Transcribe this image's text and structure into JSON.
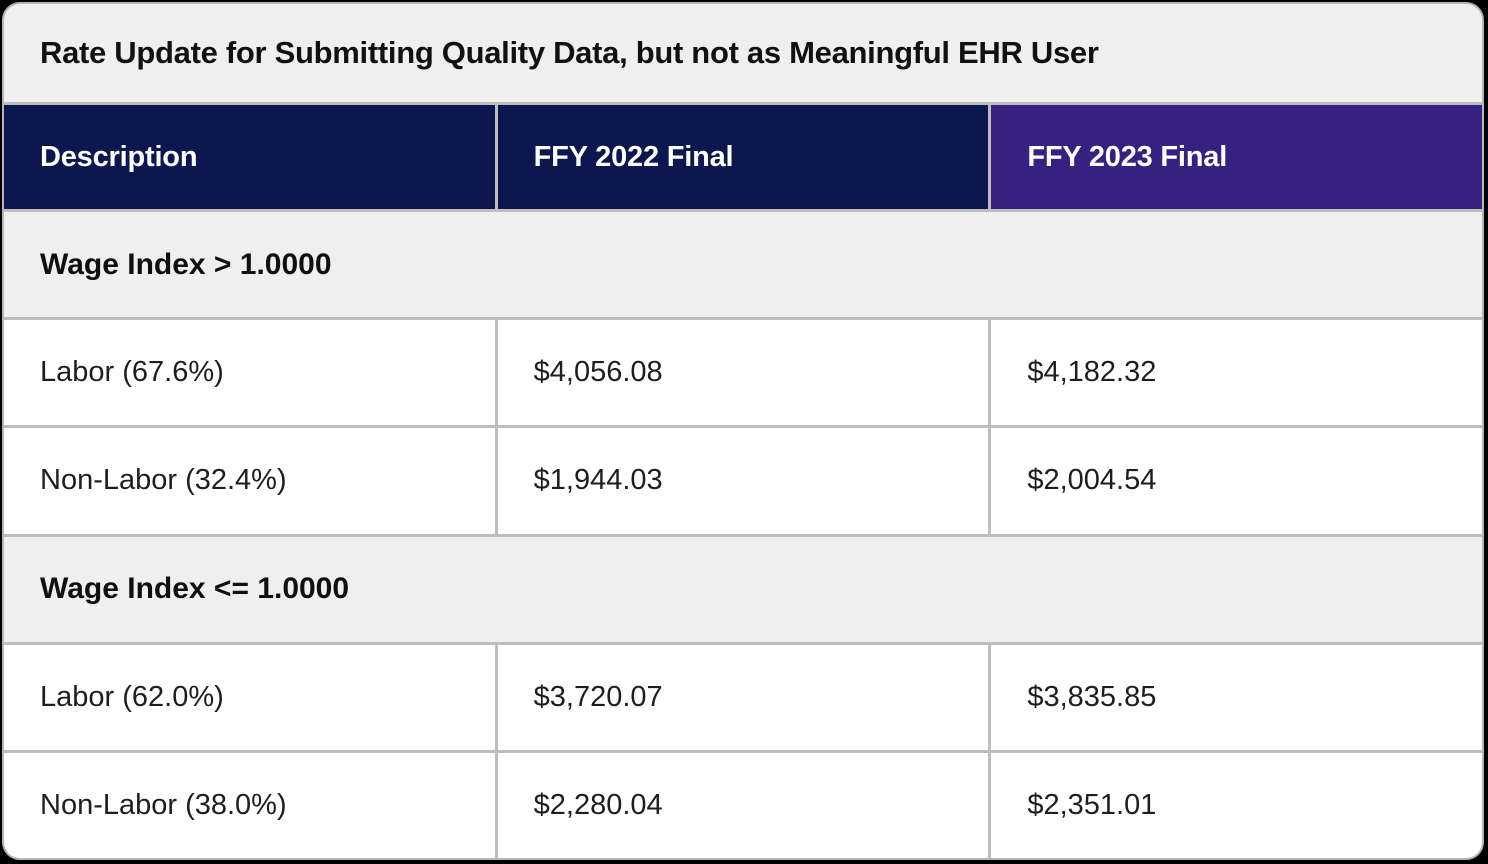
{
  "table": {
    "title": "Rate Update for Submitting Quality Data, but not as Meaningful EHR User",
    "columns": {
      "description": "Description",
      "ffy2022": "FFY 2022 Final",
      "ffy2023": "FFY 2023 Final"
    },
    "sections": [
      {
        "header": "Wage Index > 1.0000",
        "rows": [
          {
            "description": "Labor (67.6%)",
            "ffy2022": "$4,056.08",
            "ffy2023": "$4,182.32"
          },
          {
            "description": "Non-Labor (32.4%)",
            "ffy2022": "$1,944.03",
            "ffy2023": "$2,004.54"
          }
        ]
      },
      {
        "header": "Wage Index <= 1.0000",
        "rows": [
          {
            "description": "Labor (62.0%)",
            "ffy2022": "$3,720.07",
            "ffy2023": "$3,835.85"
          },
          {
            "description": "Non-Labor (38.0%)",
            "ffy2022": "$2,280.04",
            "ffy2023": "$2,351.01"
          }
        ]
      }
    ],
    "colors": {
      "header_navy": "#0c1750",
      "header_purple": "#362180",
      "section_background": "#efefef",
      "grid_border": "#bdbdbd"
    }
  },
  "chart_data": {
    "type": "table",
    "title": "Rate Update for Submitting Quality Data, but not as Meaningful EHR User",
    "columns": [
      "Description",
      "FFY 2022 Final",
      "FFY 2023 Final"
    ],
    "rows": [
      [
        "Wage Index > 1.0000",
        "",
        ""
      ],
      [
        "Labor (67.6%)",
        "$4,056.08",
        "$4,182.32"
      ],
      [
        "Non-Labor (32.4%)",
        "$1,944.03",
        "$2,004.54"
      ],
      [
        "Wage Index <= 1.0000",
        "",
        ""
      ],
      [
        "Labor (62.0%)",
        "$3,720.07",
        "$3,835.85"
      ],
      [
        "Non-Labor (38.0%)",
        "$2,280.04",
        "$2,351.01"
      ]
    ]
  }
}
